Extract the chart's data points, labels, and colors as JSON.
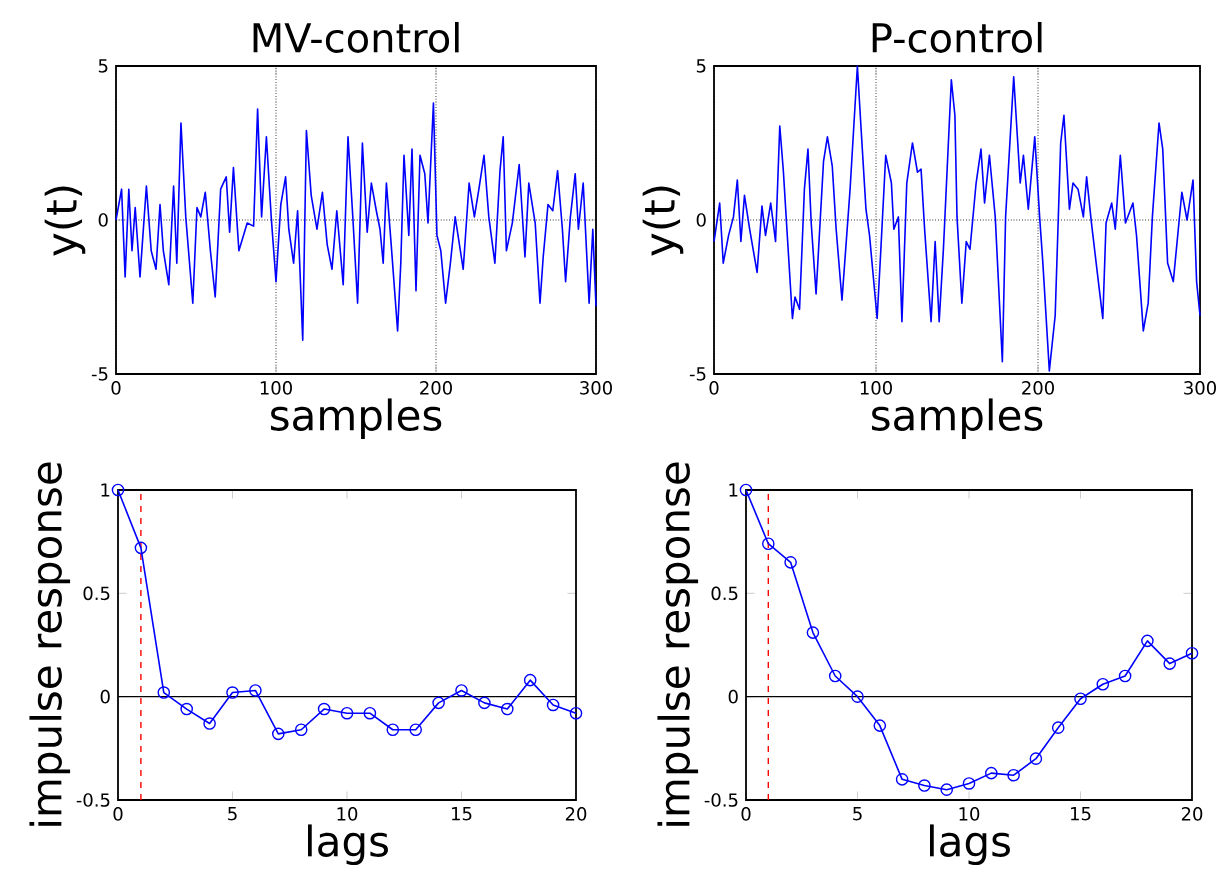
{
  "chart_data": [
    {
      "type": "line",
      "title": "MV-control",
      "xlabel": "samples",
      "ylabel": "y(t)",
      "xlim": [
        0,
        300
      ],
      "ylim": [
        -5,
        5
      ],
      "xticks": [
        0,
        100,
        200,
        300
      ],
      "yticks": [
        -5,
        0,
        5
      ],
      "grid": true,
      "marker": "none",
      "line_style": "solid",
      "x": [
        0,
        3.5,
        5.7,
        8,
        10,
        12,
        15,
        19,
        22,
        25,
        27.5,
        29.6,
        33,
        36,
        38,
        40.6,
        43.6,
        48,
        50.6,
        53,
        55.8,
        59,
        62,
        65.4,
        68.9,
        71,
        73.4,
        76.8,
        82,
        86,
        88.5,
        91,
        94,
        97,
        100,
        103,
        106,
        108,
        111,
        113.5,
        116.7,
        119,
        122,
        125.6,
        129,
        132,
        135,
        138,
        142,
        145,
        148,
        151,
        154,
        157,
        159.6,
        162.7,
        165,
        167,
        169,
        172,
        176,
        178,
        180,
        183,
        185,
        187.5,
        190,
        193,
        195,
        198.4,
        200.6,
        203,
        206,
        209,
        212,
        217,
        220.7,
        224,
        226.8,
        230,
        233,
        236.8,
        240,
        242,
        244,
        247.7,
        252,
        255.6,
        258,
        262,
        265,
        267,
        270,
        273,
        276,
        279,
        281,
        284,
        287,
        289,
        292,
        295.7,
        298,
        300
      ],
      "series": [
        {
          "color": "#0000ff",
          "values": [
            0,
            1.0,
            -1.85,
            1.0,
            -1.0,
            0.4,
            -1.85,
            1.1,
            -1.0,
            -1.6,
            0.5,
            -1.0,
            -2.1,
            1.1,
            -1.4,
            3.15,
            0.1,
            -2.7,
            0.4,
            0.1,
            0.9,
            -1.0,
            -2.5,
            1.0,
            1.4,
            -0.4,
            1.7,
            -1.0,
            -0.1,
            -0.2,
            3.6,
            0.1,
            2.7,
            0.1,
            -2.0,
            0.5,
            1.4,
            -0.3,
            -1.4,
            0.3,
            -3.9,
            2.9,
            0.8,
            -0.3,
            0.9,
            -0.8,
            -1.6,
            0.3,
            -2.1,
            2.7,
            0.1,
            -2.7,
            2.5,
            -0.4,
            1.2,
            0.3,
            -0.3,
            -1.4,
            1.2,
            -0.8,
            -3.6,
            -1.4,
            2.1,
            -0.5,
            2.3,
            -2.3,
            2.1,
            1.5,
            -0.1,
            3.8,
            -0.5,
            -1.0,
            -2.7,
            -1.4,
            0.1,
            -1.6,
            1.2,
            0.1,
            1.0,
            2.1,
            0.1,
            -1.4,
            1.6,
            2.7,
            -1.0,
            -0.1,
            1.8,
            -1.2,
            1.2,
            -0.1,
            -2.7,
            -1.2,
            0.5,
            0.3,
            1.6,
            -0.3,
            -2.0,
            0.1,
            1.5,
            -0.3,
            1.2,
            -2.7,
            -0.3,
            -2.8
          ]
        }
      ]
    },
    {
      "type": "line",
      "title": "P-control",
      "xlabel": "samples",
      "ylabel": "y(t)",
      "xlim": [
        0,
        300
      ],
      "ylim": [
        -5,
        5
      ],
      "xticks": [
        0,
        100,
        200,
        300
      ],
      "yticks": [
        -5,
        0,
        5
      ],
      "grid": true,
      "marker": "none",
      "line_style": "solid",
      "x": [
        0,
        3.5,
        5.7,
        9,
        12,
        14.4,
        16.6,
        18.8,
        22,
        26.6,
        29.6,
        31.8,
        35,
        38,
        40.6,
        42.8,
        45,
        48.4,
        50,
        52.8,
        55.8,
        58,
        60,
        63,
        67.6,
        70,
        73,
        75.4,
        79,
        84,
        88.5,
        90.8,
        93.8,
        96,
        100.7,
        103,
        106,
        109.5,
        111,
        113.8,
        116,
        119,
        122.5,
        125.6,
        127.8,
        130,
        134,
        136.5,
        139,
        141.6,
        146.5,
        148.7,
        150,
        153,
        155.7,
        158,
        161.8,
        164.8,
        167,
        170,
        173.6,
        178,
        180,
        185,
        189,
        191,
        194,
        198,
        201,
        203,
        207,
        210.6,
        214,
        216,
        219.4,
        221.6,
        224.7,
        228,
        230,
        233,
        236.8,
        240,
        242,
        245.5,
        247.7,
        250.8,
        254,
        258.6,
        260.8,
        265,
        268,
        270.6,
        274.7,
        277,
        280,
        283.5,
        286.6,
        288.8,
        292,
        295.7,
        297.9,
        300
      ],
      "series": [
        {
          "color": "#0000ff",
          "values": [
            -0.7,
            0.55,
            -1.4,
            -0.5,
            0.1,
            1.3,
            -0.7,
            0.8,
            -0.3,
            -1.7,
            0.45,
            -0.5,
            0.55,
            -0.7,
            3.05,
            1.6,
            -0.3,
            -3.2,
            -2.5,
            -2.9,
            1.0,
            2.3,
            -0.1,
            -2.4,
            1.9,
            2.7,
            1.75,
            -0.3,
            -2.6,
            1.0,
            5.0,
            2.95,
            0.35,
            -0.5,
            -3.2,
            -0.95,
            2.1,
            1.2,
            -0.3,
            0.1,
            -3.3,
            1.2,
            2.5,
            1.55,
            1.65,
            -0.3,
            -3.3,
            -0.7,
            -3.3,
            -0.95,
            4.55,
            3.4,
            0.1,
            -2.7,
            -0.7,
            -0.95,
            1.2,
            2.3,
            0.55,
            2.1,
            0.1,
            -4.6,
            0.1,
            4.65,
            1.2,
            2.1,
            0.35,
            2.7,
            0.1,
            -1.4,
            -4.9,
            -3.1,
            2.5,
            3.4,
            0.35,
            1.2,
            1.0,
            0.1,
            1.4,
            -0.1,
            -1.8,
            -3.2,
            -0.1,
            0.55,
            -0.3,
            2.1,
            -0.1,
            0.55,
            -0.5,
            -3.6,
            -2.7,
            0.1,
            3.15,
            2.3,
            -1.4,
            -2.0,
            -0.3,
            0.9,
            0.0,
            1.3,
            -2.0,
            -3.1
          ]
        }
      ]
    },
    {
      "type": "line",
      "xlabel": "lags",
      "ylabel": "impulse response",
      "xlim": [
        0,
        20
      ],
      "ylim": [
        -0.5,
        1
      ],
      "xticks": [
        0,
        5,
        10,
        15,
        20
      ],
      "yticks": [
        -0.5,
        0,
        0.5,
        1
      ],
      "marker": "circle",
      "line_style": "solid",
      "x": [
        0,
        1,
        2,
        3,
        4,
        5,
        6,
        7,
        8,
        9,
        10,
        11,
        12,
        13,
        14,
        15,
        16,
        17,
        18,
        19,
        20
      ],
      "series": [
        {
          "color": "#0000ff",
          "values": [
            1,
            0.72,
            0.02,
            -0.06,
            -0.13,
            0.02,
            0.03,
            -0.18,
            -0.16,
            -0.06,
            -0.08,
            -0.08,
            -0.16,
            -0.16,
            -0.03,
            0.03,
            -0.03,
            -0.06,
            0.08,
            -0.04,
            -0.08
          ]
        }
      ],
      "ref_lines": [
        {
          "axis": "y",
          "value": 0,
          "color": "#000000",
          "line_style": "solid"
        },
        {
          "axis": "x",
          "value": 1,
          "color": "#ff0000",
          "line_style": "dashed"
        }
      ]
    },
    {
      "type": "line",
      "xlabel": "lags",
      "ylabel": "impulse response",
      "xlim": [
        0,
        20
      ],
      "ylim": [
        -0.5,
        1
      ],
      "xticks": [
        0,
        5,
        10,
        15,
        20
      ],
      "yticks": [
        -0.5,
        0,
        0.5,
        1
      ],
      "marker": "circle",
      "line_style": "solid",
      "x": [
        0,
        1,
        2,
        3,
        4,
        5,
        6,
        7,
        8,
        9,
        10,
        11,
        12,
        13,
        14,
        15,
        16,
        17,
        18,
        19,
        20
      ],
      "series": [
        {
          "color": "#0000ff",
          "values": [
            1,
            0.74,
            0.65,
            0.31,
            0.1,
            0,
            -0.14,
            -0.4,
            -0.43,
            -0.45,
            -0.42,
            -0.37,
            -0.38,
            -0.3,
            -0.15,
            -0.01,
            0.06,
            0.1,
            0.27,
            0.16,
            0.21
          ]
        }
      ],
      "ref_lines": [
        {
          "axis": "y",
          "value": 0,
          "color": "#000000",
          "line_style": "solid"
        },
        {
          "axis": "x",
          "value": 1,
          "color": "#ff0000",
          "line_style": "dashed"
        }
      ]
    }
  ]
}
